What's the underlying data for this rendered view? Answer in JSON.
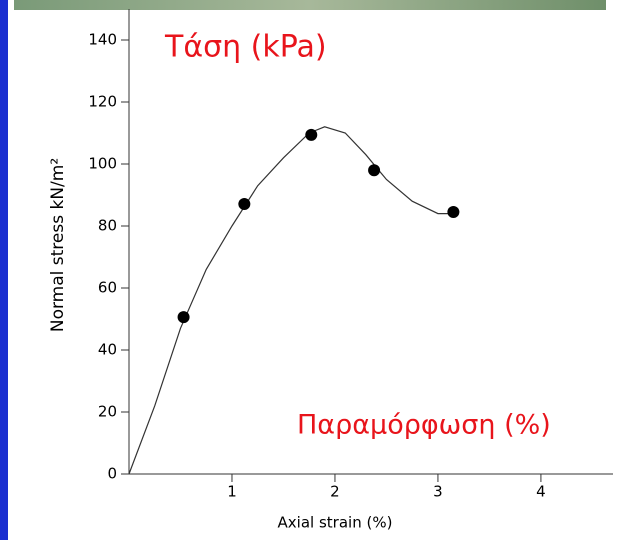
{
  "chart_data": {
    "type": "scatter",
    "title": "Τάση (kPa)",
    "annotation": "Παραμόρφωση (%)",
    "x_label": "Axial strain (%)",
    "y_label": "Normal stress kN/m²",
    "points": {
      "x": [
        0.53,
        1.12,
        1.77,
        2.38,
        3.15
      ],
      "values": [
        50.6,
        87.1,
        109.4,
        98,
        84.5
      ],
      "color": "#000000"
    },
    "curve": {
      "x": [
        0,
        0.25,
        0.5,
        0.75,
        1,
        1.25,
        1.5,
        1.75,
        1.9,
        2.1,
        2.3,
        2.5,
        2.75,
        3,
        3.2
      ],
      "values": [
        0,
        22,
        47,
        66,
        80,
        93,
        102,
        110,
        112,
        110,
        103,
        95,
        88,
        84,
        84
      ],
      "color": "#333333"
    },
    "xlim": [
      0,
      4.7
    ],
    "ylim": [
      0,
      150
    ],
    "xticks": [
      1,
      2,
      3,
      4
    ],
    "yticks": [
      0,
      20,
      40,
      60,
      80,
      100,
      120,
      140
    ],
    "annotation_color": "#e8141b"
  }
}
